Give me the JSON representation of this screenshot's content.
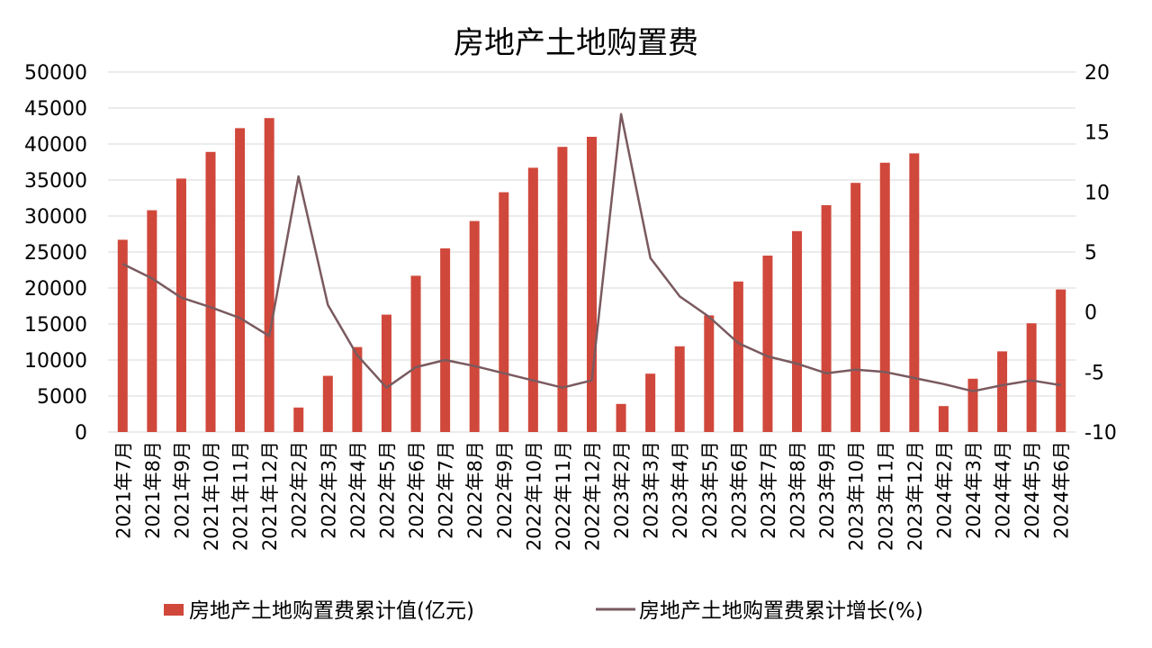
{
  "chart_data": {
    "type": "bar",
    "title": "房地产土地购置费",
    "categories": [
      "2021年7月",
      "2021年8月",
      "2021年9月",
      "2021年10月",
      "2021年11月",
      "2021年12月",
      "2022年2月",
      "2022年3月",
      "2022年4月",
      "2022年5月",
      "2022年6月",
      "2022年7月",
      "2022年8月",
      "2022年9月",
      "2022年10月",
      "2022年11月",
      "2022年12月",
      "2023年2月",
      "2023年3月",
      "2023年4月",
      "2023年5月",
      "2023年6月",
      "2023年7月",
      "2023年8月",
      "2023年9月",
      "2023年10月",
      "2023年11月",
      "2023年12月",
      "2024年2月",
      "2024年3月",
      "2024年4月",
      "2024年5月",
      "2024年6月"
    ],
    "ylim": [
      0,
      50000
    ],
    "yticks": [
      0,
      5000,
      10000,
      15000,
      20000,
      25000,
      30000,
      35000,
      40000,
      45000,
      50000
    ],
    "y2lim": [
      -10,
      20
    ],
    "y2ticks": [
      -10,
      -5,
      0,
      5,
      10,
      15,
      20
    ],
    "legend_position": "bottom",
    "grid": true,
    "series": [
      {
        "name": "房地产土地购置费累计值(亿元)",
        "type": "bar",
        "axis": "left",
        "color": "#d0483b",
        "values": [
          26700,
          30800,
          35200,
          38900,
          42200,
          43600,
          3400,
          7800,
          11800,
          16300,
          21700,
          25500,
          29300,
          33300,
          36700,
          39600,
          41000,
          3900,
          8100,
          11900,
          16200,
          20900,
          24500,
          27900,
          31500,
          34600,
          37400,
          38700,
          3600,
          7400,
          11200,
          15100,
          19800
        ]
      },
      {
        "name": "房地产土地购置费累计增长(%)",
        "type": "line",
        "axis": "right",
        "color": "#7a5a5f",
        "values": [
          4.0,
          2.8,
          1.2,
          0.4,
          -0.5,
          -2.0,
          11.3,
          0.6,
          -3.6,
          -6.3,
          -4.6,
          -4.0,
          -4.5,
          -5.1,
          -5.7,
          -6.3,
          -5.7,
          16.5,
          4.5,
          1.3,
          -0.4,
          -2.6,
          -3.7,
          -4.3,
          -5.1,
          -4.8,
          -5.0,
          -5.5,
          -6.0,
          -6.6,
          -6.1,
          -5.7,
          -6.1
        ]
      }
    ]
  }
}
